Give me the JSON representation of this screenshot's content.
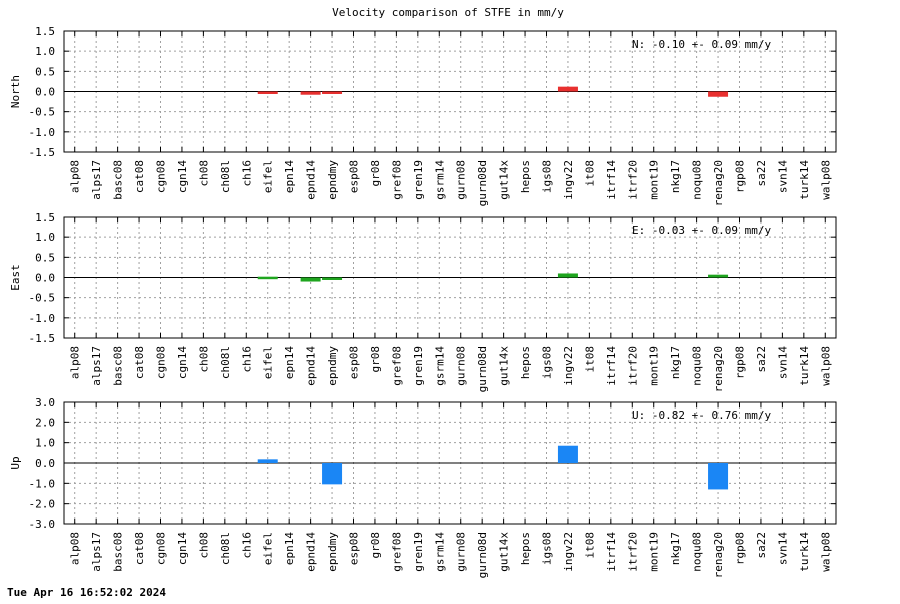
{
  "title": "Velocity comparison of STFE in mm/y",
  "timestamp": "Tue Apr 16 16:52:02 2024",
  "colors": {
    "north": "#e8302f",
    "east": "#1fa51f",
    "up": "#1a86f5",
    "grid": "#a0a0a0",
    "axis": "#000000"
  },
  "chart_data": [
    {
      "type": "bar",
      "ylabel": "North",
      "ylim": [
        -1.5,
        1.5
      ],
      "yticks": [
        "1.5",
        "1.0",
        "0.5",
        "0.0",
        "-0.5",
        "-1.0",
        "-1.5"
      ],
      "annotation": "N:  -0.10 +-  0.09 mm/y",
      "grid": true,
      "categories": [
        "alp08",
        "alps17",
        "basc08",
        "cat08",
        "cgn08",
        "cgn14",
        "ch08",
        "ch08l",
        "ch16",
        "eifel",
        "epn14",
        "epnd14",
        "epndmy",
        "esp08",
        "gr08",
        "gref08",
        "gren19",
        "gsrm14",
        "gurn08",
        "gurn08d",
        "gut14x",
        "hepos",
        "igs08",
        "ingv22",
        "it08",
        "itrf14",
        "itrf20",
        "mont19",
        "nkg17",
        "noqu08",
        "renag20",
        "rgp08",
        "sa22",
        "svn14",
        "turk14",
        "walp08"
      ],
      "values": [
        0,
        0,
        0,
        0,
        0,
        0,
        0,
        0,
        0,
        -0.05,
        0,
        -0.08,
        -0.03,
        0,
        0,
        0,
        0,
        0,
        0,
        0,
        0,
        0,
        0,
        0.12,
        0,
        0,
        0,
        0,
        0,
        0,
        -0.13,
        0,
        0,
        0,
        0,
        0
      ]
    },
    {
      "type": "bar",
      "ylabel": "East",
      "ylim": [
        -1.5,
        1.5
      ],
      "yticks": [
        "1.5",
        "1.0",
        "0.5",
        "0.0",
        "-0.5",
        "-1.0",
        "-1.5"
      ],
      "annotation": "E:  -0.03 +-  0.09 mm/y",
      "grid": true,
      "categories": [
        "alp08",
        "alps17",
        "basc08",
        "cat08",
        "cgn08",
        "cgn14",
        "ch08",
        "ch08l",
        "ch16",
        "eifel",
        "epn14",
        "epnd14",
        "epndmy",
        "esp08",
        "gr08",
        "gref08",
        "gren19",
        "gsrm14",
        "gurn08",
        "gurn08d",
        "gut14x",
        "hepos",
        "igs08",
        "ingv22",
        "it08",
        "itrf14",
        "itrf20",
        "mont19",
        "nkg17",
        "noqu08",
        "renag20",
        "rgp08",
        "sa22",
        "svn14",
        "turk14",
        "walp08"
      ],
      "values": [
        0,
        0,
        0,
        0,
        0,
        0,
        0,
        0,
        0,
        0.02,
        0,
        -0.1,
        -0.05,
        0,
        0,
        0,
        0,
        0,
        0,
        0,
        0,
        0,
        0,
        0.1,
        0,
        0,
        0,
        0,
        0,
        0,
        0.07,
        0,
        0,
        0,
        0,
        0
      ]
    },
    {
      "type": "bar",
      "ylabel": "Up",
      "ylim": [
        -3.0,
        3.0
      ],
      "yticks": [
        "3.0",
        "2.0",
        "1.0",
        "0.0",
        "-1.0",
        "-2.0",
        "-3.0"
      ],
      "annotation": "U:  -0.82 +-  0.76 mm/y",
      "grid": true,
      "categories": [
        "alp08",
        "alps17",
        "basc08",
        "cat08",
        "cgn08",
        "cgn14",
        "ch08",
        "ch08l",
        "ch16",
        "eifel",
        "epn14",
        "epnd14",
        "epndmy",
        "esp08",
        "gr08",
        "gref08",
        "gren19",
        "gsrm14",
        "gurn08",
        "gurn08d",
        "gut14x",
        "hepos",
        "igs08",
        "ingv22",
        "it08",
        "itrf14",
        "itrf20",
        "mont19",
        "nkg17",
        "noqu08",
        "renag20",
        "rgp08",
        "sa22",
        "svn14",
        "turk14",
        "walp08"
      ],
      "values": [
        0,
        0,
        0,
        0,
        0,
        0,
        0,
        0,
        0,
        0.18,
        0,
        0,
        -1.05,
        0,
        0,
        0,
        0,
        0,
        0,
        0,
        0,
        0,
        0,
        0.85,
        0,
        0,
        0,
        0,
        0,
        0,
        -1.3,
        0,
        0,
        0,
        0,
        0
      ]
    }
  ]
}
